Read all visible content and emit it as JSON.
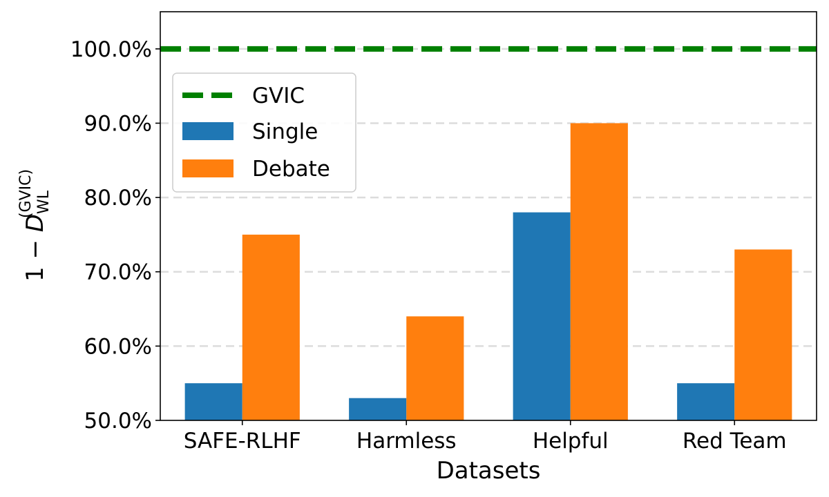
{
  "chart_data": {
    "type": "bar",
    "title": "",
    "xlabel": "Datasets",
    "ylabel": {
      "prefix": "1 − ",
      "symbol": "D",
      "superscript": "(GVIC)",
      "subscript": "WL"
    },
    "categories": [
      "SAFE-RLHF",
      "Harmless",
      "Helpful",
      "Red Team"
    ],
    "series": [
      {
        "name": "Single",
        "color": "#1f77b4",
        "values": [
          55,
          53,
          78,
          55
        ]
      },
      {
        "name": "Debate",
        "color": "#ff7f0e",
        "values": [
          75,
          64,
          90,
          73
        ]
      }
    ],
    "reference_line": {
      "name": "GVIC",
      "value": 100,
      "color": "#008000",
      "style": "dashed"
    },
    "ylim": [
      50,
      105
    ],
    "yticks": [
      50,
      60,
      70,
      80,
      90,
      100
    ],
    "ytick_labels": [
      "50.0%",
      "60.0%",
      "70.0%",
      "80.0%",
      "90.0%",
      "100.0%"
    ],
    "grid": "y-dashed",
    "legend": {
      "placement": "upper-left",
      "entries": [
        "GVIC",
        "Single",
        "Debate"
      ]
    }
  }
}
